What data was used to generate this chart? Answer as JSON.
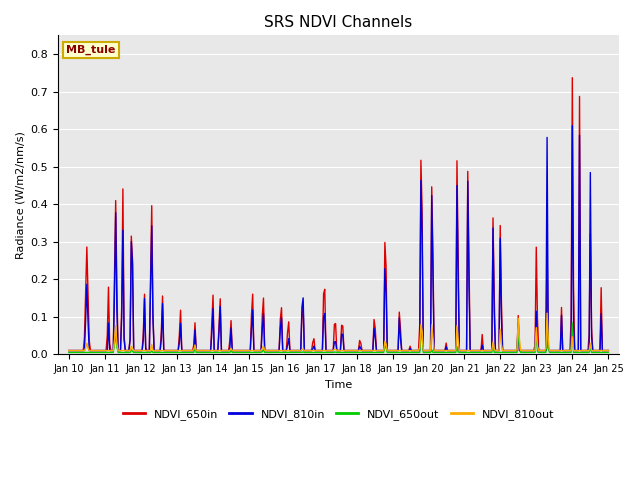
{
  "title": "SRS NDVI Channels",
  "xlabel": "Time",
  "ylabel": "Radiance (W/m2/nm/s)",
  "ylim": [
    0,
    0.85
  ],
  "yticks": [
    0.0,
    0.1,
    0.2,
    0.3,
    0.4,
    0.5,
    0.6,
    0.7,
    0.8
  ],
  "bg_color": "#e8e8e8",
  "annotation_text": "MB_tule",
  "annotation_color": "#8B0000",
  "annotation_bg": "#ffffcc",
  "annotation_border": "#ccaa00",
  "series": {
    "NDVI_650in": {
      "color": "#dd0000",
      "lw": 1.0
    },
    "NDVI_810in": {
      "color": "#0000dd",
      "lw": 1.0
    },
    "NDVI_650out": {
      "color": "#00cc00",
      "lw": 1.0
    },
    "NDVI_810out": {
      "color": "#ffaa00",
      "lw": 1.0
    }
  },
  "x_tick_labels": [
    "Jan 10",
    "Jan 11",
    "Jan 12",
    "Jan 13",
    "Jan 14",
    "Jan 15",
    "Jan 16",
    "Jan 17",
    "Jan 18",
    "Jan 19",
    "Jan 20",
    "Jan 21",
    "Jan 22",
    "Jan 23",
    "Jan 24",
    "Jan 25"
  ],
  "x_tick_positions": [
    0,
    1,
    2,
    3,
    4,
    5,
    6,
    7,
    8,
    9,
    10,
    11,
    12,
    13,
    14,
    15
  ]
}
